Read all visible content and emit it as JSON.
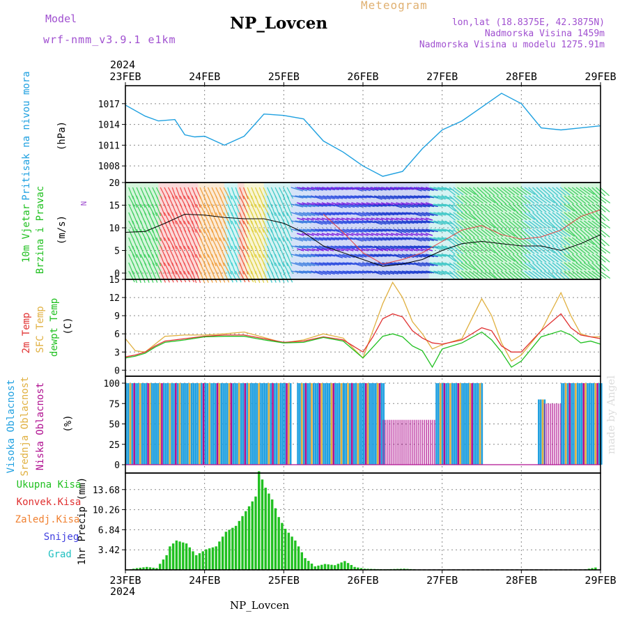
{
  "header": {
    "model_label": "Model",
    "model_value": "wrf-nmm_v3.9.1 e1km",
    "station": "NP_Lovcen",
    "product": "Meteogram",
    "coords": "lon,lat (18.8375E, 42.3875N)",
    "elevation": "Nadmorska Visina 1459m",
    "model_elevation": "Nadmorska Visina u modelu 1275.91m"
  },
  "footer": {
    "station": "NP_Lovcen",
    "author": "made by Angel"
  },
  "colors": {
    "pressure": "#1ea0e0",
    "wind_speed": "#000000",
    "wind_gust": "#e04040",
    "temp2m": "#e03030",
    "sfc_temp": "#e0b040",
    "dewpt": "#20c020",
    "cloud_high": "#20a0e0",
    "cloud_mid": "#e0b040",
    "cloud_low": "#b01090",
    "precip_total": "#20c020",
    "precip_conv": "#e03030",
    "precip_frz": "#f08030",
    "snow": "#4040e0",
    "graupel": "#20c0c0"
  },
  "chart_data": [
    {
      "type": "line",
      "panel": "pressure",
      "ylabel": "Pritisak na nivou mora",
      "unit": "(hPa)",
      "x_ticks": [
        "23FEB",
        "24FEB",
        "25FEB",
        "26FEB",
        "27FEB",
        "28FEB",
        "29FEB"
      ],
      "x_year": "2024",
      "ylim": [
        1005.6,
        1019.6
      ],
      "y_ticks": [
        "1008",
        "1011",
        "1014",
        "1017"
      ],
      "x_hours": [
        0,
        6,
        10,
        15,
        18,
        21,
        24,
        30,
        36,
        42,
        48,
        54,
        60,
        66,
        72,
        78,
        84,
        90,
        96,
        102,
        108,
        114,
        120,
        126,
        132,
        138,
        144
      ],
      "series": [
        {
          "name": "",
          "values": [
            1016.8,
            1015.2,
            1014.5,
            1014.7,
            1012.5,
            1012.2,
            1012.3,
            1011.0,
            1012.3,
            1015.5,
            1015.3,
            1014.8,
            1011.6,
            1010.0,
            1008.0,
            1006.5,
            1007.2,
            1010.5,
            1013.2,
            1014.5,
            1016.5,
            1018.5,
            1017.0,
            1013.5,
            1013.2,
            1013.5,
            1013.8
          ]
        }
      ]
    },
    {
      "type": "line",
      "panel": "wind",
      "ylabel": "10m Vjetar Brzina i Pravac",
      "unit": "(m/s)",
      "compass": "N",
      "ylim": [
        0,
        20
      ],
      "y_ticks": [
        "0",
        "5",
        "10",
        "15",
        "20"
      ],
      "x_hours": [
        0,
        6,
        12,
        18,
        24,
        30,
        36,
        42,
        48,
        54,
        60,
        66,
        72,
        78,
        84,
        90,
        96,
        102,
        108,
        114,
        120,
        126,
        132,
        138,
        144
      ],
      "series": [
        {
          "name": "",
          "values": [
            9.0,
            9.2,
            11.0,
            13.0,
            12.8,
            12.3,
            12.0,
            12.0,
            11.0,
            9.0,
            6.0,
            4.5,
            3.0,
            1.5,
            2.0,
            3.0,
            5.0,
            6.5,
            7.0,
            6.5,
            6.0,
            6.0,
            5.0,
            6.5,
            8.5
          ]
        },
        {
          "name": "",
          "values": [
            null,
            null,
            null,
            null,
            null,
            null,
            null,
            null,
            null,
            null,
            13.0,
            9.0,
            4.5,
            2.0,
            3.0,
            4.5,
            7.0,
            9.5,
            10.5,
            8.5,
            7.5,
            8.0,
            9.5,
            12.5,
            14.0
          ]
        }
      ]
    },
    {
      "type": "line",
      "panel": "temperature",
      "ylabel_lines": [
        "2m Temp",
        "SFC Temp",
        "dewpt Temp"
      ],
      "unit": "(C)",
      "ylim": [
        -1,
        15
      ],
      "y_ticks": [
        "0",
        "3",
        "6",
        "9",
        "12",
        "15"
      ],
      "x_hours": [
        0,
        3,
        6,
        9,
        12,
        18,
        24,
        30,
        36,
        42,
        48,
        54,
        60,
        66,
        72,
        75,
        78,
        81,
        84,
        87,
        90,
        93,
        96,
        102,
        108,
        111,
        114,
        117,
        120,
        126,
        132,
        135,
        138,
        141,
        144
      ],
      "series": [
        {
          "name": "2m Temp",
          "values": [
            2.2,
            2.5,
            3.0,
            4.0,
            4.8,
            5.2,
            5.6,
            5.8,
            5.8,
            5.2,
            4.6,
            4.8,
            5.5,
            5.0,
            3.0,
            5.5,
            8.5,
            9.3,
            8.8,
            6.5,
            5.3,
            4.5,
            4.3,
            5.0,
            7.0,
            6.5,
            4.0,
            3.0,
            3.0,
            6.5,
            9.3,
            7.0,
            5.8,
            5.5,
            5.2
          ]
        },
        {
          "name": "SFC Temp",
          "values": [
            5.2,
            3.2,
            3.0,
            4.3,
            5.6,
            5.8,
            5.8,
            6.0,
            6.3,
            5.4,
            4.5,
            5.0,
            6.0,
            5.3,
            2.0,
            6.5,
            11.0,
            14.5,
            12.0,
            8.0,
            6.0,
            3.5,
            4.2,
            5.2,
            11.8,
            9.0,
            4.5,
            1.5,
            2.5,
            6.5,
            12.8,
            9.0,
            6.0,
            5.5,
            5.5
          ]
        },
        {
          "name": "dewpt Temp",
          "values": [
            2.0,
            2.3,
            2.8,
            3.8,
            4.6,
            5.0,
            5.5,
            5.6,
            5.6,
            5.0,
            4.5,
            4.6,
            5.4,
            4.8,
            2.0,
            3.8,
            5.6,
            6.0,
            5.5,
            4.0,
            3.2,
            0.5,
            3.5,
            4.5,
            6.3,
            5.0,
            3.0,
            0.5,
            1.5,
            5.5,
            6.5,
            5.8,
            4.5,
            4.8,
            4.3
          ]
        }
      ]
    },
    {
      "type": "bar",
      "panel": "clouds",
      "ylabel_lines": [
        "Visoka Oblacnost",
        "Srednja Oblacnost",
        "Niska  Oblacnost"
      ],
      "unit": "(%)",
      "ylim": [
        0,
        100
      ],
      "y_ticks": [
        "0",
        "25",
        "50",
        "75",
        "100"
      ],
      "segments": [
        {
          "layer": "high",
          "from": 0,
          "to": 50,
          "value": 100
        },
        {
          "layer": "high",
          "from": 52,
          "to": 66,
          "value": 100
        },
        {
          "layer": "high",
          "from": 66,
          "to": 78,
          "value": 100
        },
        {
          "layer": "low",
          "from": 78,
          "to": 94,
          "value": 55
        },
        {
          "layer": "high",
          "from": 94,
          "to": 108,
          "value": 100
        },
        {
          "layer": "high",
          "from": 125,
          "to": 127,
          "value": 80
        },
        {
          "layer": "low",
          "from": 127,
          "to": 132,
          "value": 75
        },
        {
          "layer": "high",
          "from": 132,
          "to": 144,
          "value": 100
        }
      ]
    },
    {
      "type": "bar",
      "panel": "precip",
      "legend": [
        "Ukupna  Kisa",
        "Konvek.Kisa",
        "Zaledj.Kisa",
        "Snijeg",
        "Grad"
      ],
      "ylabel": "1hr Precip (mm)",
      "ylim": [
        0,
        16.5
      ],
      "y_ticks": [
        "3.42",
        "6.84",
        "10.26",
        "13.68"
      ],
      "x_ticks": [
        "23FEB",
        "24FEB",
        "25FEB",
        "26FEB",
        "27FEB",
        "28FEB",
        "29FEB"
      ],
      "x_year": "2024",
      "x_hours": [
        0,
        3,
        6,
        9,
        12,
        13,
        15,
        18,
        21,
        24,
        27,
        30,
        33,
        36,
        39,
        40,
        42,
        44,
        46,
        48,
        51,
        54,
        57,
        60,
        63,
        66,
        69,
        72,
        78,
        84,
        90,
        96,
        102,
        108,
        114,
        120,
        126,
        132,
        138,
        143
      ],
      "values": [
        0,
        0.3,
        0.5,
        0.3,
        2.5,
        4.0,
        5.0,
        4.5,
        2.5,
        3.5,
        4.0,
        6.5,
        7.5,
        10.0,
        12.5,
        16.8,
        14.0,
        12.0,
        9.0,
        7.0,
        5.0,
        2.0,
        0.6,
        1.0,
        0.8,
        1.5,
        0.5,
        0.2,
        0.1,
        0.2,
        0,
        0,
        0,
        0,
        0,
        0,
        0,
        0,
        0,
        0.5
      ]
    }
  ]
}
